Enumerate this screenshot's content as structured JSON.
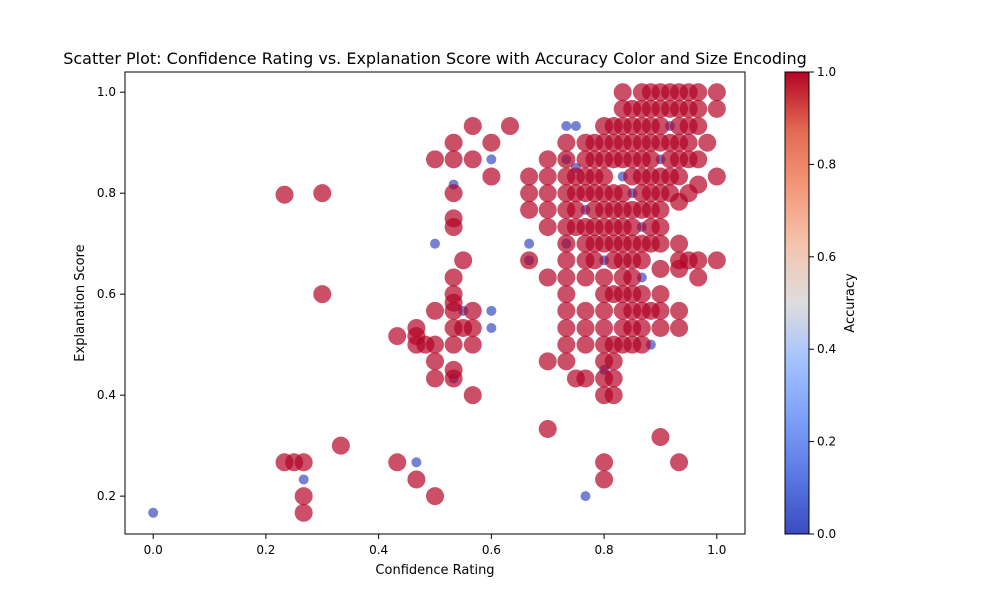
{
  "chart_data": {
    "type": "scatter",
    "title": "Scatter Plot: Confidence Rating vs. Explanation Score with Accuracy Color and Size Encoding",
    "xlabel": "Confidence Rating",
    "ylabel": "Explanation Score",
    "xlim": [
      -0.05,
      1.05
    ],
    "ylim": [
      0.125,
      1.04
    ],
    "x_ticks": [
      "0.0",
      "0.2",
      "0.4",
      "0.6",
      "0.8",
      "1.0"
    ],
    "y_ticks": [
      "0.2",
      "0.4",
      "0.6",
      "0.8",
      "1.0"
    ],
    "grid": false,
    "colorbar": {
      "label": "Accuracy",
      "colormap": "coolwarm",
      "range": [
        0,
        1
      ],
      "ticks": [
        "0.0",
        "0.2",
        "0.4",
        "0.6",
        "0.8",
        "1.0"
      ],
      "low_color": "#3b4cc0",
      "high_color": "#b40426"
    },
    "encoding": {
      "color": "accuracy",
      "size": "accuracy",
      "alpha": 0.7
    },
    "points_accuracy_0": [
      [
        0.0,
        0.167
      ],
      [
        0.267,
        0.233
      ],
      [
        0.467,
        0.267
      ],
      [
        0.5,
        0.7
      ],
      [
        0.533,
        0.817
      ],
      [
        0.533,
        0.433
      ],
      [
        0.55,
        0.567
      ],
      [
        0.6,
        0.867
      ],
      [
        0.6,
        0.567
      ],
      [
        0.6,
        0.533
      ],
      [
        0.667,
        0.7
      ],
      [
        0.667,
        0.667
      ],
      [
        0.733,
        0.933
      ],
      [
        0.75,
        0.933
      ],
      [
        0.733,
        0.867
      ],
      [
        0.733,
        0.7
      ],
      [
        0.767,
        0.2
      ],
      [
        0.8,
        0.45
      ],
      [
        0.833,
        0.833
      ],
      [
        0.85,
        0.8
      ],
      [
        0.9,
        0.867
      ],
      [
        0.767,
        0.767
      ],
      [
        0.8,
        0.667
      ],
      [
        0.867,
        0.733
      ],
      [
        0.883,
        0.5
      ],
      [
        0.917,
        0.933
      ],
      [
        0.867,
        0.633
      ],
      [
        0.75,
        0.85
      ]
    ],
    "points_accuracy_1": [
      [
        0.233,
        0.267
      ],
      [
        0.233,
        0.797
      ],
      [
        0.25,
        0.267
      ],
      [
        0.267,
        0.267
      ],
      [
        0.267,
        0.2
      ],
      [
        0.267,
        0.167
      ],
      [
        0.3,
        0.8
      ],
      [
        0.3,
        0.6
      ],
      [
        0.333,
        0.3
      ],
      [
        0.433,
        0.267
      ],
      [
        0.433,
        0.517
      ],
      [
        0.467,
        0.233
      ],
      [
        0.467,
        0.533
      ],
      [
        0.467,
        0.517
      ],
      [
        0.467,
        0.5
      ],
      [
        0.483,
        0.5
      ],
      [
        0.5,
        0.2
      ],
      [
        0.5,
        0.867
      ],
      [
        0.5,
        0.567
      ],
      [
        0.5,
        0.5
      ],
      [
        0.5,
        0.467
      ],
      [
        0.5,
        0.433
      ],
      [
        0.533,
        0.9
      ],
      [
        0.533,
        0.867
      ],
      [
        0.533,
        0.8
      ],
      [
        0.533,
        0.75
      ],
      [
        0.533,
        0.733
      ],
      [
        0.533,
        0.633
      ],
      [
        0.533,
        0.6
      ],
      [
        0.533,
        0.583
      ],
      [
        0.533,
        0.567
      ],
      [
        0.533,
        0.533
      ],
      [
        0.533,
        0.5
      ],
      [
        0.533,
        0.45
      ],
      [
        0.533,
        0.433
      ],
      [
        0.55,
        0.667
      ],
      [
        0.55,
        0.533
      ],
      [
        0.567,
        0.933
      ],
      [
        0.567,
        0.867
      ],
      [
        0.567,
        0.567
      ],
      [
        0.567,
        0.533
      ],
      [
        0.567,
        0.5
      ],
      [
        0.567,
        0.4
      ],
      [
        0.6,
        0.9
      ],
      [
        0.6,
        0.833
      ],
      [
        0.633,
        0.933
      ],
      [
        0.667,
        0.833
      ],
      [
        0.667,
        0.8
      ],
      [
        0.667,
        0.767
      ],
      [
        0.667,
        0.667
      ],
      [
        0.7,
        0.867
      ],
      [
        0.7,
        0.833
      ],
      [
        0.7,
        0.8
      ],
      [
        0.7,
        0.767
      ],
      [
        0.7,
        0.733
      ],
      [
        0.7,
        0.633
      ],
      [
        0.7,
        0.467
      ],
      [
        0.7,
        0.333
      ],
      [
        0.733,
        0.9
      ],
      [
        0.733,
        0.867
      ],
      [
        0.733,
        0.833
      ],
      [
        0.733,
        0.8
      ],
      [
        0.733,
        0.767
      ],
      [
        0.733,
        0.733
      ],
      [
        0.733,
        0.7
      ],
      [
        0.733,
        0.667
      ],
      [
        0.733,
        0.633
      ],
      [
        0.733,
        0.6
      ],
      [
        0.733,
        0.567
      ],
      [
        0.733,
        0.533
      ],
      [
        0.733,
        0.5
      ],
      [
        0.733,
        0.467
      ],
      [
        0.75,
        0.833
      ],
      [
        0.75,
        0.8
      ],
      [
        0.75,
        0.767
      ],
      [
        0.75,
        0.733
      ],
      [
        0.75,
        0.433
      ],
      [
        0.767,
        0.9
      ],
      [
        0.767,
        0.867
      ],
      [
        0.767,
        0.833
      ],
      [
        0.767,
        0.8
      ],
      [
        0.767,
        0.733
      ],
      [
        0.767,
        0.7
      ],
      [
        0.767,
        0.667
      ],
      [
        0.767,
        0.633
      ],
      [
        0.767,
        0.567
      ],
      [
        0.767,
        0.533
      ],
      [
        0.767,
        0.5
      ],
      [
        0.767,
        0.433
      ],
      [
        0.783,
        0.9
      ],
      [
        0.783,
        0.867
      ],
      [
        0.783,
        0.833
      ],
      [
        0.783,
        0.8
      ],
      [
        0.783,
        0.767
      ],
      [
        0.783,
        0.733
      ],
      [
        0.783,
        0.7
      ],
      [
        0.783,
        0.667
      ],
      [
        0.8,
        0.933
      ],
      [
        0.8,
        0.9
      ],
      [
        0.8,
        0.867
      ],
      [
        0.8,
        0.833
      ],
      [
        0.8,
        0.8
      ],
      [
        0.8,
        0.767
      ],
      [
        0.8,
        0.733
      ],
      [
        0.8,
        0.7
      ],
      [
        0.8,
        0.633
      ],
      [
        0.8,
        0.6
      ],
      [
        0.8,
        0.567
      ],
      [
        0.8,
        0.533
      ],
      [
        0.8,
        0.5
      ],
      [
        0.8,
        0.467
      ],
      [
        0.8,
        0.433
      ],
      [
        0.8,
        0.4
      ],
      [
        0.8,
        0.267
      ],
      [
        0.8,
        0.233
      ],
      [
        0.817,
        0.933
      ],
      [
        0.817,
        0.9
      ],
      [
        0.817,
        0.867
      ],
      [
        0.817,
        0.8
      ],
      [
        0.817,
        0.767
      ],
      [
        0.817,
        0.733
      ],
      [
        0.817,
        0.7
      ],
      [
        0.817,
        0.667
      ],
      [
        0.817,
        0.6
      ],
      [
        0.817,
        0.5
      ],
      [
        0.817,
        0.467
      ],
      [
        0.817,
        0.433
      ],
      [
        0.817,
        0.4
      ],
      [
        0.833,
        1.0
      ],
      [
        0.833,
        0.967
      ],
      [
        0.833,
        0.933
      ],
      [
        0.833,
        0.9
      ],
      [
        0.833,
        0.867
      ],
      [
        0.833,
        0.8
      ],
      [
        0.833,
        0.767
      ],
      [
        0.833,
        0.733
      ],
      [
        0.833,
        0.7
      ],
      [
        0.833,
        0.667
      ],
      [
        0.833,
        0.633
      ],
      [
        0.833,
        0.6
      ],
      [
        0.833,
        0.567
      ],
      [
        0.833,
        0.533
      ],
      [
        0.833,
        0.5
      ],
      [
        0.85,
        0.967
      ],
      [
        0.85,
        0.933
      ],
      [
        0.85,
        0.9
      ],
      [
        0.85,
        0.867
      ],
      [
        0.85,
        0.833
      ],
      [
        0.85,
        0.767
      ],
      [
        0.85,
        0.733
      ],
      [
        0.85,
        0.7
      ],
      [
        0.85,
        0.667
      ],
      [
        0.85,
        0.633
      ],
      [
        0.85,
        0.6
      ],
      [
        0.85,
        0.567
      ],
      [
        0.85,
        0.533
      ],
      [
        0.85,
        0.5
      ],
      [
        0.867,
        1.0
      ],
      [
        0.867,
        0.967
      ],
      [
        0.867,
        0.933
      ],
      [
        0.867,
        0.9
      ],
      [
        0.867,
        0.867
      ],
      [
        0.867,
        0.833
      ],
      [
        0.867,
        0.8
      ],
      [
        0.867,
        0.767
      ],
      [
        0.867,
        0.7
      ],
      [
        0.867,
        0.667
      ],
      [
        0.867,
        0.6
      ],
      [
        0.867,
        0.567
      ],
      [
        0.867,
        0.533
      ],
      [
        0.867,
        0.5
      ],
      [
        0.883,
        1.0
      ],
      [
        0.883,
        0.967
      ],
      [
        0.883,
        0.933
      ],
      [
        0.883,
        0.9
      ],
      [
        0.883,
        0.867
      ],
      [
        0.883,
        0.833
      ],
      [
        0.883,
        0.8
      ],
      [
        0.883,
        0.767
      ],
      [
        0.883,
        0.733
      ],
      [
        0.883,
        0.7
      ],
      [
        0.883,
        0.567
      ],
      [
        0.9,
        1.0
      ],
      [
        0.9,
        0.967
      ],
      [
        0.9,
        0.933
      ],
      [
        0.9,
        0.9
      ],
      [
        0.9,
        0.833
      ],
      [
        0.9,
        0.8
      ],
      [
        0.9,
        0.767
      ],
      [
        0.9,
        0.733
      ],
      [
        0.9,
        0.7
      ],
      [
        0.9,
        0.65
      ],
      [
        0.9,
        0.6
      ],
      [
        0.9,
        0.567
      ],
      [
        0.9,
        0.533
      ],
      [
        0.9,
        0.317
      ],
      [
        0.917,
        1.0
      ],
      [
        0.917,
        0.967
      ],
      [
        0.917,
        0.9
      ],
      [
        0.917,
        0.867
      ],
      [
        0.917,
        0.833
      ],
      [
        0.917,
        0.8
      ],
      [
        0.933,
        1.0
      ],
      [
        0.933,
        0.967
      ],
      [
        0.933,
        0.933
      ],
      [
        0.933,
        0.9
      ],
      [
        0.933,
        0.867
      ],
      [
        0.933,
        0.833
      ],
      [
        0.933,
        0.783
      ],
      [
        0.933,
        0.7
      ],
      [
        0.933,
        0.667
      ],
      [
        0.933,
        0.65
      ],
      [
        0.933,
        0.567
      ],
      [
        0.933,
        0.533
      ],
      [
        0.933,
        0.267
      ],
      [
        0.95,
        1.0
      ],
      [
        0.95,
        0.967
      ],
      [
        0.95,
        0.933
      ],
      [
        0.95,
        0.9
      ],
      [
        0.95,
        0.867
      ],
      [
        0.95,
        0.8
      ],
      [
        0.95,
        0.667
      ],
      [
        0.967,
        1.0
      ],
      [
        0.967,
        0.967
      ],
      [
        0.967,
        0.933
      ],
      [
        0.967,
        0.867
      ],
      [
        0.967,
        0.817
      ],
      [
        0.967,
        0.667
      ],
      [
        0.967,
        0.633
      ],
      [
        0.983,
        0.9
      ],
      [
        1.0,
        1.0
      ],
      [
        1.0,
        0.967
      ],
      [
        1.0,
        0.833
      ],
      [
        1.0,
        0.667
      ]
    ]
  }
}
